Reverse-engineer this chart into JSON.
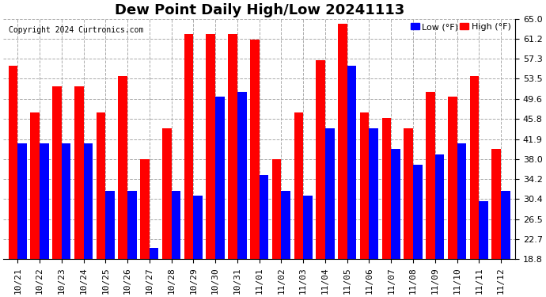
{
  "title": "Dew Point Daily High/Low 20241113",
  "copyright": "Copyright 2024 Curtronics.com",
  "legend_low": "Low (°F)",
  "legend_high": "High (°F)",
  "low_color": "#0000ff",
  "high_color": "#ff0000",
  "ylim": [
    18.8,
    65.0
  ],
  "yticks": [
    18.8,
    22.7,
    26.5,
    30.4,
    34.2,
    38.0,
    41.9,
    45.8,
    49.6,
    53.5,
    57.3,
    61.2,
    65.0
  ],
  "categories": [
    "10/21",
    "10/22",
    "10/23",
    "10/24",
    "10/25",
    "10/26",
    "10/27",
    "10/28",
    "10/29",
    "10/30",
    "10/31",
    "11/01",
    "11/02",
    "11/03",
    "11/04",
    "11/05",
    "11/06",
    "11/07",
    "11/08",
    "11/09",
    "11/10",
    "11/11",
    "11/12"
  ],
  "high_values": [
    56.0,
    47.0,
    52.0,
    52.0,
    47.0,
    54.0,
    38.0,
    44.0,
    62.0,
    62.0,
    62.0,
    61.0,
    38.0,
    47.0,
    57.0,
    64.0,
    47.0,
    46.0,
    44.0,
    51.0,
    50.0,
    54.0,
    40.0
  ],
  "low_values": [
    41.0,
    41.0,
    41.0,
    41.0,
    32.0,
    32.0,
    21.0,
    32.0,
    31.0,
    50.0,
    51.0,
    35.0,
    32.0,
    31.0,
    44.0,
    56.0,
    44.0,
    40.0,
    37.0,
    39.0,
    41.0,
    30.0,
    32.0
  ],
  "background_color": "#ffffff",
  "grid_color": "#aaaaaa",
  "bar_width": 0.42,
  "title_fontsize": 13,
  "tick_fontsize": 8,
  "ybase": 18.8
}
